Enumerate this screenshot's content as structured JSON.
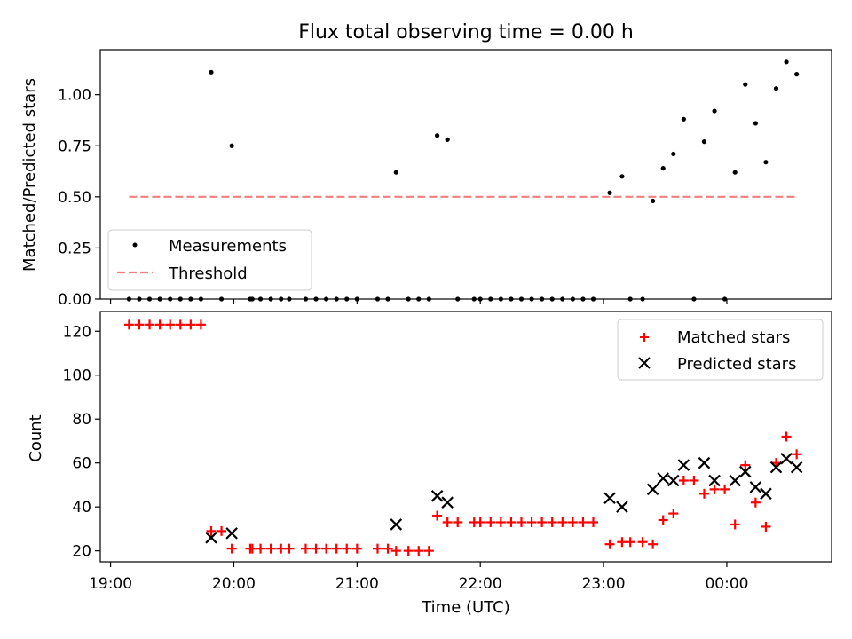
{
  "title": "Flux total observing time = 0.00 h",
  "chart_data": [
    {
      "type": "scatter",
      "ylabel": "Matched/Predicted stars",
      "ylim": [
        0,
        1.22
      ],
      "xlim": [
        "18:55",
        "00:51"
      ],
      "yticks": [
        "0.00",
        "0.25",
        "0.50",
        "0.75",
        "1.00"
      ],
      "legend_position": "lower-left",
      "series": [
        {
          "name": "Measurements",
          "marker": "dot",
          "color": "#000000",
          "points": [
            [
              "19:09",
              0
            ],
            [
              "19:14",
              0
            ],
            [
              "19:19",
              0
            ],
            [
              "19:24",
              0
            ],
            [
              "19:29",
              0
            ],
            [
              "19:34",
              0
            ],
            [
              "19:39",
              0
            ],
            [
              "19:44",
              0
            ],
            [
              "19:49",
              1.11
            ],
            [
              "19:54",
              0
            ],
            [
              "19:59",
              0.75
            ],
            [
              "20:08",
              0
            ],
            [
              "20:09",
              0
            ],
            [
              "20:13",
              0
            ],
            [
              "20:18",
              0
            ],
            [
              "20:23",
              0
            ],
            [
              "20:27",
              0
            ],
            [
              "20:35",
              0
            ],
            [
              "20:40",
              0
            ],
            [
              "20:45",
              0
            ],
            [
              "20:50",
              0
            ],
            [
              "20:55",
              0
            ],
            [
              "21:00",
              0
            ],
            [
              "21:10",
              0
            ],
            [
              "21:15",
              0
            ],
            [
              "21:19",
              0.62
            ],
            [
              "21:25",
              0
            ],
            [
              "21:30",
              0
            ],
            [
              "21:35",
              0
            ],
            [
              "21:39",
              0.8
            ],
            [
              "21:44",
              0.78
            ],
            [
              "21:49",
              0
            ],
            [
              "21:57",
              0
            ],
            [
              "22:00",
              0
            ],
            [
              "22:05",
              0
            ],
            [
              "22:10",
              0
            ],
            [
              "22:15",
              0
            ],
            [
              "22:20",
              0
            ],
            [
              "22:25",
              0
            ],
            [
              "22:30",
              0
            ],
            [
              "22:35",
              0
            ],
            [
              "22:40",
              0
            ],
            [
              "22:45",
              0
            ],
            [
              "22:50",
              0
            ],
            [
              "22:55",
              0
            ],
            [
              "23:03",
              0.52
            ],
            [
              "23:09",
              0.6
            ],
            [
              "23:13",
              0
            ],
            [
              "23:19",
              0
            ],
            [
              "23:24",
              0.48
            ],
            [
              "23:29",
              0.64
            ],
            [
              "23:34",
              0.71
            ],
            [
              "23:39",
              0.88
            ],
            [
              "23:44",
              0
            ],
            [
              "23:49",
              0.77
            ],
            [
              "23:54",
              0.92
            ],
            [
              "23:59",
              0
            ],
            [
              "00:04",
              0.62
            ],
            [
              "00:09",
              1.05
            ],
            [
              "00:14",
              0.86
            ],
            [
              "00:19",
              0.67
            ],
            [
              "00:24",
              1.03
            ],
            [
              "00:29",
              1.16
            ],
            [
              "00:34",
              1.1
            ]
          ]
        },
        {
          "name": "Threshold",
          "style": "dashed",
          "color": "#f08080",
          "points": [
            [
              "19:09",
              0.5
            ],
            [
              "00:34",
              0.5
            ]
          ]
        }
      ]
    },
    {
      "type": "scatter",
      "xlabel": "Time (UTC)",
      "ylabel": "Count",
      "ylim": [
        15,
        129
      ],
      "yticks": [
        "20",
        "40",
        "60",
        "80",
        "100",
        "120"
      ],
      "xlim": [
        "18:55",
        "00:51"
      ],
      "xticks": [
        "19:00",
        "20:00",
        "21:00",
        "22:00",
        "23:00",
        "00:00"
      ],
      "legend_position": "upper-right",
      "series": [
        {
          "name": "Matched stars",
          "marker": "plus",
          "color": "#ff0000",
          "points": [
            [
              "19:09",
              123
            ],
            [
              "19:14",
              123
            ],
            [
              "19:19",
              123
            ],
            [
              "19:24",
              123
            ],
            [
              "19:29",
              123
            ],
            [
              "19:34",
              123
            ],
            [
              "19:39",
              123
            ],
            [
              "19:44",
              123
            ],
            [
              "19:49",
              29
            ],
            [
              "19:54",
              29
            ],
            [
              "19:59",
              21
            ],
            [
              "20:08",
              21
            ],
            [
              "20:09",
              21
            ],
            [
              "20:13",
              21
            ],
            [
              "20:18",
              21
            ],
            [
              "20:23",
              21
            ],
            [
              "20:27",
              21
            ],
            [
              "20:35",
              21
            ],
            [
              "20:40",
              21
            ],
            [
              "20:45",
              21
            ],
            [
              "20:50",
              21
            ],
            [
              "20:55",
              21
            ],
            [
              "21:00",
              21
            ],
            [
              "21:10",
              21
            ],
            [
              "21:15",
              21
            ],
            [
              "21:19",
              20
            ],
            [
              "21:25",
              20
            ],
            [
              "21:30",
              20
            ],
            [
              "21:35",
              20
            ],
            [
              "21:39",
              36
            ],
            [
              "21:44",
              33
            ],
            [
              "21:49",
              33
            ],
            [
              "21:57",
              33
            ],
            [
              "22:00",
              33
            ],
            [
              "22:05",
              33
            ],
            [
              "22:10",
              33
            ],
            [
              "22:15",
              33
            ],
            [
              "22:20",
              33
            ],
            [
              "22:25",
              33
            ],
            [
              "22:30",
              33
            ],
            [
              "22:35",
              33
            ],
            [
              "22:40",
              33
            ],
            [
              "22:45",
              33
            ],
            [
              "22:50",
              33
            ],
            [
              "22:55",
              33
            ],
            [
              "23:03",
              23
            ],
            [
              "23:09",
              24
            ],
            [
              "23:13",
              24
            ],
            [
              "23:19",
              24
            ],
            [
              "23:24",
              23
            ],
            [
              "23:29",
              34
            ],
            [
              "23:34",
              37
            ],
            [
              "23:39",
              52
            ],
            [
              "23:44",
              52
            ],
            [
              "23:49",
              46
            ],
            [
              "23:54",
              48
            ],
            [
              "23:59",
              48
            ],
            [
              "00:04",
              32
            ],
            [
              "00:09",
              59
            ],
            [
              "00:14",
              42
            ],
            [
              "00:19",
              31
            ],
            [
              "00:24",
              60
            ],
            [
              "00:29",
              72
            ],
            [
              "00:34",
              64
            ]
          ]
        },
        {
          "name": "Predicted stars",
          "marker": "x",
          "color": "#000000",
          "points": [
            [
              "19:49",
              26
            ],
            [
              "19:59",
              28
            ],
            [
              "21:19",
              32
            ],
            [
              "21:39",
              45
            ],
            [
              "21:44",
              42
            ],
            [
              "23:03",
              44
            ],
            [
              "23:09",
              40
            ],
            [
              "23:24",
              48
            ],
            [
              "23:29",
              53
            ],
            [
              "23:34",
              52
            ],
            [
              "23:39",
              59
            ],
            [
              "23:49",
              60
            ],
            [
              "23:54",
              52
            ],
            [
              "00:04",
              52
            ],
            [
              "00:09",
              56
            ],
            [
              "00:14",
              49
            ],
            [
              "00:19",
              46
            ],
            [
              "00:24",
              58
            ],
            [
              "00:29",
              62
            ],
            [
              "00:34",
              58
            ]
          ]
        }
      ]
    }
  ]
}
